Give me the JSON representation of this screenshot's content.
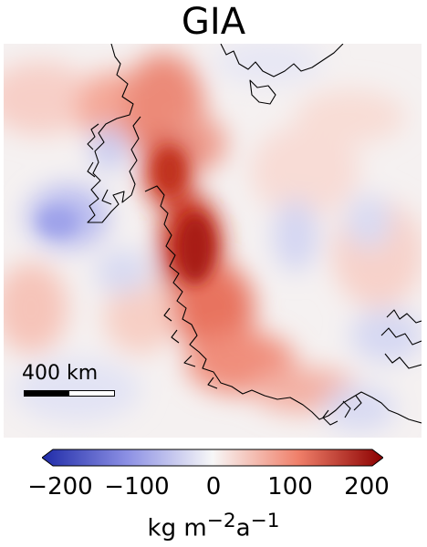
{
  "title": "GIA",
  "map": {
    "colormap": [
      "#2020a8",
      "#8a8ae0",
      "#f7f7f7",
      "#f0806a",
      "#8b0000"
    ],
    "background_color": "#f6f2f2",
    "scale_bar_label": "400 km"
  },
  "colorbar": {
    "min": -200,
    "max": 200,
    "ticks": [
      "−200",
      "−100",
      "0",
      "100",
      "200"
    ],
    "label_unit": "kg m",
    "label_exp1": "−2",
    "label_mid": "a",
    "label_exp2": "−1",
    "extend": "both"
  }
}
